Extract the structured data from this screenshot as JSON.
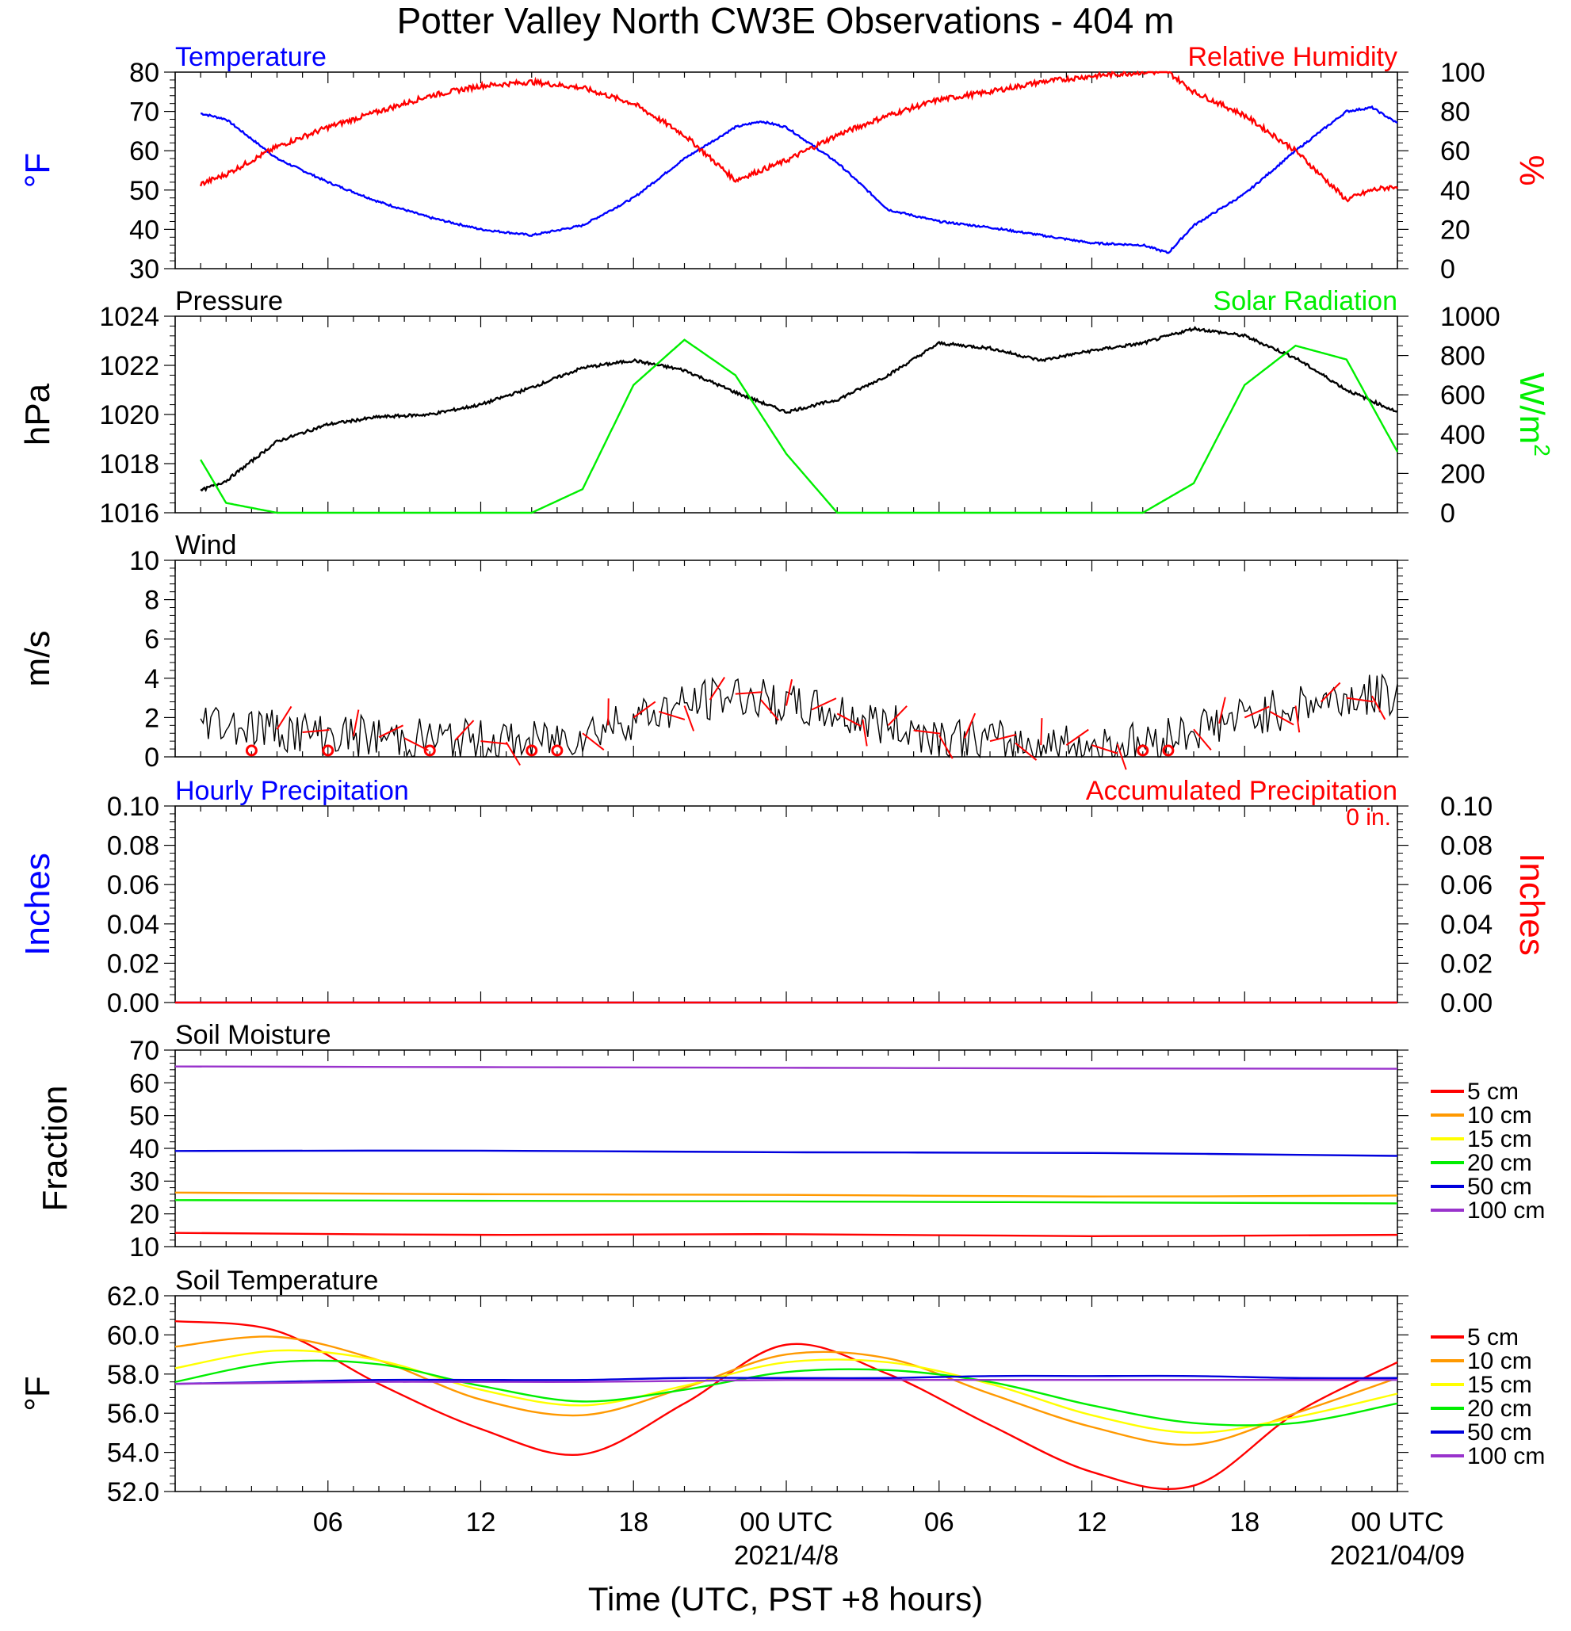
{
  "title": "Potter Valley North CW3E Observations - 404 m",
  "xaxis": {
    "label": "Time (UTC, PST +8 hours)",
    "ticks": [
      "06",
      "12",
      "18",
      "00 UTC",
      "06",
      "12",
      "18",
      "00 UTC"
    ],
    "dates": [
      "2021/4/8",
      "2021/04/09"
    ]
  },
  "colors": {
    "temperature": "#0000ff",
    "humidity": "#ff0000",
    "pressure": "#000000",
    "solar": "#00ee00",
    "wind": "#000000",
    "barb": "#ff0000",
    "hourly_precip": "#0000ff",
    "accum_precip": "#ff0000",
    "depth_5": "#ff0000",
    "depth_10": "#ff9900",
    "depth_15": "#ffff00",
    "depth_20": "#00ee00",
    "depth_50": "#0000dd",
    "depth_100": "#9933cc"
  },
  "chart_data": [
    {
      "type": "line",
      "panel": "temperature_humidity",
      "left_title": "Temperature",
      "right_title": "Relative Humidity",
      "ylabel_left": "°F",
      "ylabel_right": "%",
      "ylim_left": [
        30,
        80
      ],
      "ylim_right": [
        0,
        100
      ],
      "yticks_left": [
        "80",
        "70",
        "60",
        "50",
        "40",
        "30"
      ],
      "yticks_right": [
        "100",
        "80",
        "60",
        "40",
        "20",
        "0"
      ],
      "x_hours": [
        1,
        2,
        4,
        6,
        8,
        10,
        12,
        14,
        16,
        18,
        20,
        22,
        23,
        24,
        26,
        28,
        30,
        32,
        34,
        36,
        38,
        39,
        40,
        42,
        44,
        46,
        47,
        48
      ],
      "series": [
        {
          "name": "Temperature",
          "axis": "left",
          "values": [
            69.5,
            68,
            58,
            52,
            47,
            43,
            40,
            38.5,
            41,
            48,
            58,
            66,
            67.5,
            66,
            57,
            45,
            42,
            40.5,
            38.5,
            36.5,
            36,
            34,
            41,
            49,
            60,
            70,
            71,
            67
          ]
        },
        {
          "name": "Relative Humidity",
          "axis": "right",
          "values": [
            43,
            48,
            62,
            72,
            80,
            88,
            93,
            95,
            92,
            84,
            68,
            45,
            50,
            55,
            68,
            78,
            86,
            90,
            95,
            98,
            100,
            100,
            90,
            78,
            60,
            35,
            40,
            42
          ]
        }
      ]
    },
    {
      "type": "line",
      "panel": "pressure_solar",
      "left_title": "Pressure",
      "right_title": "Solar Radiation",
      "ylabel_left": "hPa",
      "ylabel_right": "W/m2",
      "ylim_left": [
        1016,
        1024
      ],
      "ylim_right": [
        0,
        1000
      ],
      "yticks_left": [
        "1024",
        "1022",
        "1020",
        "1018",
        "1016"
      ],
      "yticks_right": [
        "1000",
        "800",
        "600",
        "400",
        "200",
        "0"
      ],
      "x_hours": [
        1,
        2,
        4,
        6,
        8,
        10,
        12,
        14,
        16,
        18,
        20,
        22,
        24,
        26,
        28,
        30,
        32,
        34,
        36,
        38,
        40,
        42,
        44,
        46,
        48
      ],
      "series": [
        {
          "name": "Pressure",
          "axis": "left",
          "values": [
            1016.9,
            1017.3,
            1018.9,
            1019.6,
            1019.9,
            1020.0,
            1020.4,
            1021.1,
            1021.9,
            1022.2,
            1021.8,
            1020.9,
            1020.1,
            1020.6,
            1021.6,
            1022.9,
            1022.7,
            1022.2,
            1022.6,
            1022.9,
            1023.5,
            1023.2,
            1022.3,
            1021.0,
            1020.1
          ]
        },
        {
          "name": "Solar Radiation",
          "axis": "right",
          "values": [
            270,
            50,
            0,
            0,
            0,
            0,
            0,
            0,
            120,
            650,
            880,
            700,
            300,
            0,
            0,
            0,
            0,
            0,
            0,
            0,
            150,
            650,
            850,
            780,
            310
          ]
        }
      ]
    },
    {
      "type": "line",
      "panel": "wind",
      "left_title": "Wind",
      "ylabel_left": "m/s",
      "ylim_left": [
        0,
        10
      ],
      "yticks_left": [
        "10",
        "8",
        "6",
        "4",
        "2",
        "0"
      ],
      "x_hours": [
        1,
        2,
        4,
        6,
        8,
        10,
        12,
        14,
        16,
        18,
        20,
        22,
        24,
        26,
        28,
        30,
        32,
        34,
        36,
        38,
        40,
        42,
        44,
        46,
        48
      ],
      "series": [
        {
          "name": "Wind speed",
          "values": [
            2.0,
            1.7,
            1.4,
            1.1,
            1.0,
            0.9,
            0.8,
            0.7,
            1.2,
            2.0,
            2.6,
            3.2,
            2.6,
            2.2,
            1.6,
            1.1,
            0.8,
            0.6,
            0.6,
            0.7,
            1.4,
            2.0,
            2.6,
            3.0,
            3.2
          ]
        }
      ],
      "calm_hours": [
        3,
        6,
        10,
        14,
        15,
        38,
        39
      ]
    },
    {
      "type": "line",
      "panel": "precipitation",
      "left_title": "Hourly Precipitation",
      "right_title": "Accumulated Precipitation",
      "total_label": "0 in.",
      "ylabel_left": "Inches",
      "ylabel_right": "Inches",
      "ylim_left": [
        0,
        0.1
      ],
      "ylim_right": [
        0,
        0.1
      ],
      "yticks_left": [
        "0.10",
        "0.08",
        "0.06",
        "0.04",
        "0.02",
        "0.00"
      ],
      "yticks_right": [
        "0.10",
        "0.08",
        "0.06",
        "0.04",
        "0.02",
        "0.00"
      ],
      "x_hours": [
        0,
        48
      ],
      "series": [
        {
          "name": "Hourly Precipitation",
          "values": [
            0,
            0
          ]
        },
        {
          "name": "Accumulated Precipitation",
          "values": [
            0,
            0
          ]
        }
      ]
    },
    {
      "type": "line",
      "panel": "soil_moisture",
      "left_title": "Soil Moisture",
      "ylabel_left": "Fraction",
      "ylim_left": [
        10,
        70
      ],
      "yticks_left": [
        "70",
        "60",
        "50",
        "40",
        "30",
        "20",
        "10"
      ],
      "x_hours": [
        0,
        12,
        24,
        36,
        48
      ],
      "legend": [
        "5 cm",
        "10 cm",
        "15 cm",
        "20 cm",
        "50 cm",
        "100 cm"
      ],
      "series": [
        {
          "name": "5 cm",
          "values": [
            14.2,
            13.6,
            13.8,
            13.2,
            13.6
          ]
        },
        {
          "name": "10 cm",
          "values": [
            26.5,
            26.0,
            25.8,
            25.3,
            25.6
          ]
        },
        {
          "name": "20 cm",
          "values": [
            24.2,
            24.0,
            23.8,
            23.5,
            23.2
          ]
        },
        {
          "name": "50 cm",
          "values": [
            39.2,
            39.3,
            38.8,
            38.6,
            37.7
          ]
        },
        {
          "name": "100 cm",
          "values": [
            65.0,
            64.8,
            64.6,
            64.4,
            64.3
          ]
        }
      ]
    },
    {
      "type": "line",
      "panel": "soil_temperature",
      "left_title": "Soil Temperature",
      "ylabel_left": "°F",
      "ylim_left": [
        52,
        62
      ],
      "yticks_left": [
        "62.0",
        "60.0",
        "58.0",
        "56.0",
        "54.0",
        "52.0"
      ],
      "x_hours": [
        0,
        4,
        8,
        12,
        16,
        20,
        24,
        28,
        32,
        36,
        40,
        44,
        48
      ],
      "legend": [
        "5 cm",
        "10 cm",
        "15 cm",
        "20 cm",
        "50 cm",
        "100 cm"
      ],
      "series": [
        {
          "name": "5 cm",
          "values": [
            60.7,
            60.2,
            57.5,
            55.2,
            53.9,
            56.5,
            59.5,
            58.0,
            55.4,
            53.0,
            52.3,
            56.0,
            58.6
          ]
        },
        {
          "name": "10 cm",
          "values": [
            59.4,
            59.9,
            58.7,
            56.7,
            55.9,
            57.3,
            59.0,
            58.8,
            57.0,
            55.3,
            54.4,
            56.0,
            57.8
          ]
        },
        {
          "name": "15 cm",
          "values": [
            58.3,
            59.2,
            58.7,
            57.2,
            56.4,
            57.4,
            58.6,
            58.6,
            57.5,
            55.9,
            55.0,
            55.8,
            57.0
          ]
        },
        {
          "name": "20 cm",
          "values": [
            57.6,
            58.6,
            58.5,
            57.4,
            56.6,
            57.2,
            58.1,
            58.2,
            57.6,
            56.4,
            55.5,
            55.5,
            56.5
          ]
        },
        {
          "name": "50 cm",
          "values": [
            57.5,
            57.6,
            57.7,
            57.7,
            57.7,
            57.8,
            57.8,
            57.8,
            57.9,
            57.9,
            57.9,
            57.8,
            57.8
          ]
        },
        {
          "name": "100 cm",
          "values": [
            57.5,
            57.55,
            57.6,
            57.6,
            57.6,
            57.65,
            57.7,
            57.7,
            57.7,
            57.7,
            57.7,
            57.7,
            57.7
          ]
        }
      ]
    }
  ]
}
